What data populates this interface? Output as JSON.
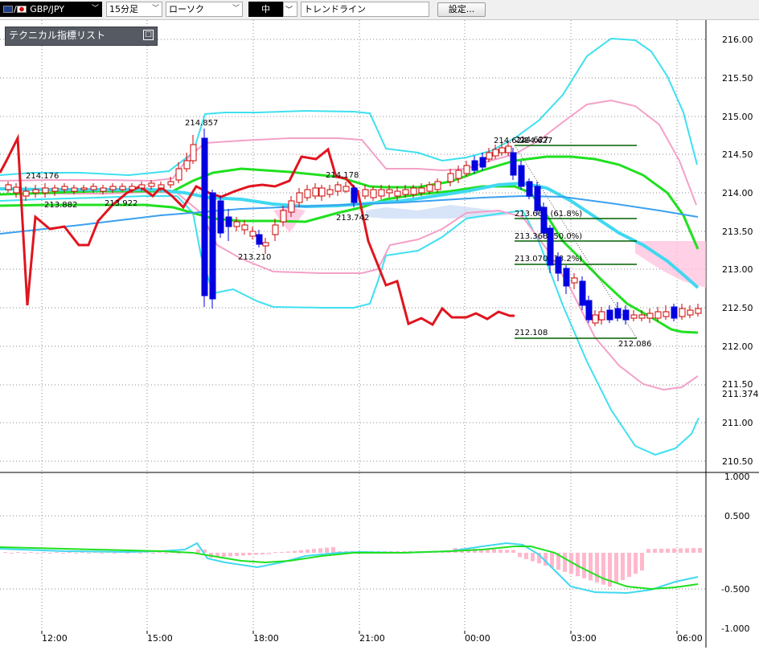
{
  "toolbar": {
    "pair": "GBP/JPY",
    "timeframe": "15分足",
    "chart_type": "ローソク",
    "size": "中",
    "draw_tool": "トレンドライン",
    "settings_button": "設定..."
  },
  "indicator_panel": {
    "title": "テクニカル指標リスト",
    "toggle_symbol": "□"
  },
  "price_axis": {
    "ticks": [
      "216.00",
      "215.50",
      "215.00",
      "214.50",
      "214.00",
      "213.50",
      "213.00",
      "212.50",
      "212.00",
      "211.50",
      "211.00",
      "210.50"
    ],
    "current_price": "211.374"
  },
  "osc_axis": {
    "ticks": [
      "1.000",
      "0.500",
      "-0.500",
      "-1.000"
    ]
  },
  "time_axis": {
    "ticks": [
      "12:00",
      "15:00",
      "18:00",
      "21:00",
      "00:00",
      "03:00",
      "06:00"
    ]
  },
  "price_labels": {
    "h1": "214.176",
    "l1": "213.882",
    "l2": "213.922",
    "h2": "214.857",
    "l3": "213.210",
    "h3": "214.178",
    "l4": "213.742",
    "h4a": "214.624",
    "h4b": "214.627",
    "l5": "212.086"
  },
  "fibonacci": {
    "high_label": "214.627",
    "low_label": "212.108",
    "levels": [
      "213.665 (61.8%)",
      "213.368 (50.0%)",
      "213.070 (38.2%)"
    ]
  },
  "colors": {
    "bollinger": "#3ee0f0",
    "envelope": "#f4a0c8",
    "ma_green": "#20e020",
    "ma_cyan": "#40d8f0",
    "trend_blue": "#3aa0f0",
    "red_line": "#e0141e",
    "fib": "#006000",
    "bull_candle": "#cc0000",
    "bear_candle": "#0000e0"
  }
}
